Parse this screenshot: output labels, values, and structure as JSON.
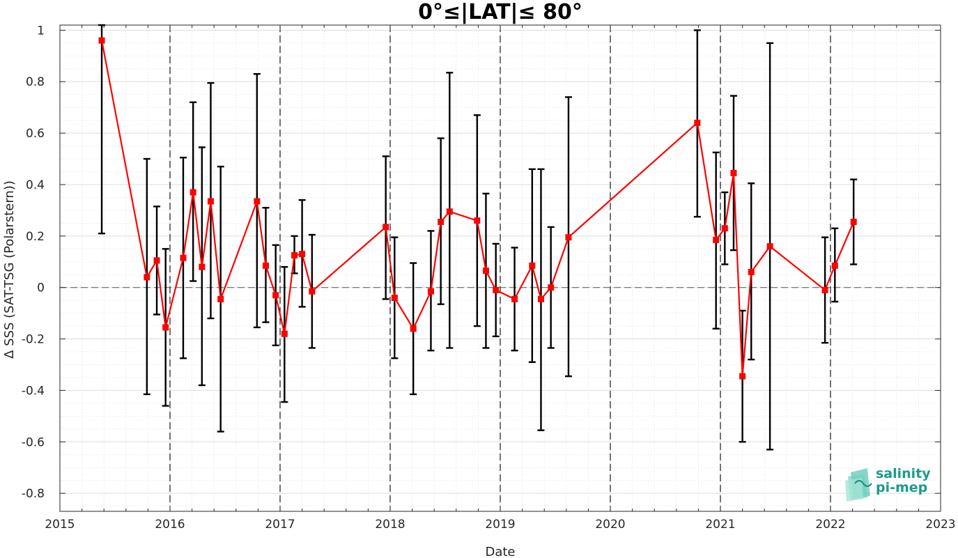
{
  "chart_data": {
    "type": "line",
    "title": "0°≤|LAT|≤ 80°",
    "xlabel": "Date",
    "ylabel": "Δ SSS (SAT-TSG (Polarstern))",
    "xlim": [
      2015,
      2023
    ],
    "ylim": [
      -0.87,
      1.02
    ],
    "x_ticks": [
      2015,
      2016,
      2017,
      2018,
      2019,
      2020,
      2021,
      2022,
      2023
    ],
    "x_tick_labels": [
      "2015",
      "2016",
      "2017",
      "2018",
      "2019",
      "2020",
      "2021",
      "2022",
      "2023"
    ],
    "y_ticks": [
      -0.8,
      -0.6,
      -0.4,
      -0.2,
      0,
      0.2,
      0.4,
      0.6,
      0.8,
      1
    ],
    "y_tick_labels": [
      "-0.8",
      "-0.6",
      "-0.4",
      "-0.2",
      "0",
      "0.2",
      "0.4",
      "0.6",
      "0.8",
      "1"
    ],
    "grid": true,
    "year_separators": [
      2016,
      2017,
      2018,
      2019,
      2020,
      2021,
      2022
    ],
    "zero_line": 0,
    "colors": {
      "series": "#ff0000",
      "errorbar": "#000000",
      "grid": "#cccccc"
    },
    "series": [
      {
        "x": [
          2015.38,
          2015.79,
          2015.88,
          2015.96,
          2016.12,
          2016.21,
          2016.29,
          2016.37,
          2016.46,
          2016.79,
          2016.87,
          2016.96,
          2017.04,
          2017.13,
          2017.2,
          2017.29,
          2017.96,
          2018.04,
          2018.21,
          2018.37,
          2018.46,
          2018.54,
          2018.79,
          2018.87,
          2018.96,
          2019.13,
          2019.29,
          2019.37,
          2019.46,
          2019.62,
          2020.79,
          2020.96,
          2021.04,
          2021.12,
          2021.2,
          2021.28,
          2021.45,
          2021.95,
          2022.04,
          2022.21
        ],
        "y": [
          0.96,
          0.04,
          0.105,
          -0.155,
          0.115,
          0.37,
          0.08,
          0.335,
          -0.045,
          0.335,
          0.085,
          -0.03,
          -0.18,
          0.125,
          0.13,
          -0.015,
          0.235,
          -0.04,
          -0.16,
          -0.015,
          0.255,
          0.295,
          0.26,
          0.065,
          -0.01,
          -0.045,
          0.085,
          -0.045,
          0.0,
          0.195,
          0.64,
          0.185,
          0.23,
          0.445,
          -0.345,
          0.06,
          0.16,
          -0.01,
          0.085,
          0.255
        ],
        "err_low": [
          0.21,
          -0.415,
          -0.105,
          -0.46,
          -0.275,
          0.025,
          -0.38,
          -0.12,
          -0.56,
          -0.155,
          -0.135,
          -0.225,
          -0.445,
          0.055,
          -0.075,
          -0.235,
          -0.045,
          -0.275,
          -0.415,
          -0.245,
          -0.065,
          -0.235,
          -0.15,
          -0.235,
          -0.19,
          -0.245,
          -0.29,
          -0.555,
          -0.235,
          -0.345,
          0.275,
          -0.16,
          0.09,
          0.145,
          -0.6,
          -0.28,
          -0.63,
          -0.215,
          -0.055,
          0.09
        ],
        "err_high": [
          1.02,
          0.5,
          0.315,
          0.15,
          0.505,
          0.72,
          0.545,
          0.795,
          0.47,
          0.83,
          0.31,
          0.165,
          0.08,
          0.2,
          0.34,
          0.205,
          0.51,
          0.195,
          0.095,
          0.22,
          0.58,
          0.835,
          0.67,
          0.365,
          0.17,
          0.155,
          0.46,
          0.46,
          0.235,
          0.74,
          1.0,
          0.525,
          0.37,
          0.745,
          -0.09,
          0.405,
          0.95,
          0.195,
          0.23,
          0.42
        ]
      }
    ]
  },
  "logo": {
    "line1": "salinity",
    "line2": "pi-mep"
  }
}
